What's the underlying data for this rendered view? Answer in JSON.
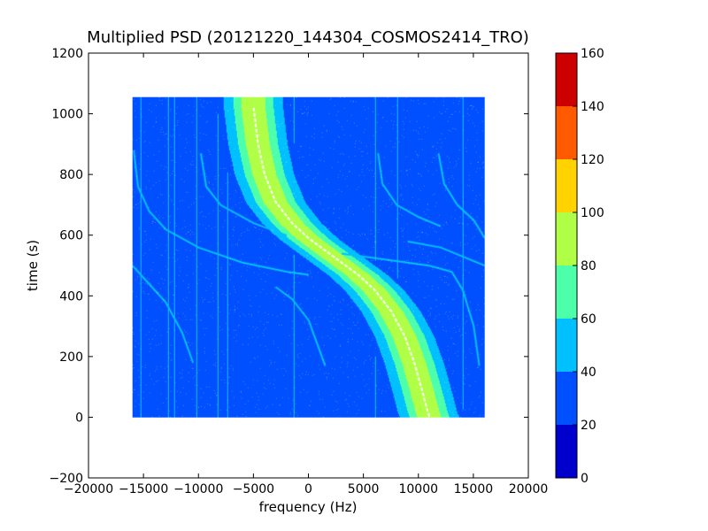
{
  "chart_data": {
    "type": "heatmap",
    "title": "Multiplied PSD (20121220_144304_COSMOS2414_TRO)",
    "xlabel": "frequency (Hz)",
    "ylabel": "time (s)",
    "xlim": [
      -20000,
      20000
    ],
    "ylim": [
      -200,
      1200
    ],
    "x_ticks": [
      -20000,
      -15000,
      -10000,
      -5000,
      0,
      5000,
      10000,
      15000,
      20000
    ],
    "y_ticks": [
      -200,
      0,
      200,
      400,
      600,
      800,
      1000,
      1200
    ],
    "x_tick_labels": [
      "−20000",
      "−15000",
      "−10000",
      "−5000",
      "0",
      "5000",
      "10000",
      "15000",
      "20000"
    ],
    "y_tick_labels": [
      "−200",
      "0",
      "200",
      "400",
      "600",
      "800",
      "1000",
      "1200"
    ],
    "data_extent": {
      "x": [
        -16000,
        16000
      ],
      "y": [
        0,
        1055
      ]
    },
    "background_value": 25,
    "grid": false,
    "colormap": "jet",
    "colorbar": {
      "range": [
        0,
        160
      ],
      "ticks": [
        0,
        20,
        40,
        60,
        80,
        100,
        120,
        140,
        160
      ],
      "tick_labels": [
        "0",
        "20",
        "40",
        "60",
        "80",
        "100",
        "120",
        "140",
        "160"
      ],
      "bins": [
        {
          "from": 0,
          "to": 20,
          "color": "#0000cd"
        },
        {
          "from": 20,
          "to": 40,
          "color": "#0050ff"
        },
        {
          "from": 40,
          "to": 60,
          "color": "#00c0ff"
        },
        {
          "from": 60,
          "to": 80,
          "color": "#4dffaa"
        },
        {
          "from": 80,
          "to": 100,
          "color": "#b0ff46"
        },
        {
          "from": 100,
          "to": 120,
          "color": "#ffd200"
        },
        {
          "from": 120,
          "to": 140,
          "color": "#ff5a00"
        },
        {
          "from": 140,
          "to": 160,
          "color": "#cd0000"
        }
      ]
    },
    "doppler_curve": {
      "description": "time vs frequency of the main Doppler trace",
      "points": [
        [
          -5000,
          1020
        ],
        [
          -4600,
          900
        ],
        [
          -4000,
          800
        ],
        [
          -3000,
          710
        ],
        [
          -1500,
          640
        ],
        [
          0,
          590
        ],
        [
          1500,
          550
        ],
        [
          3000,
          510
        ],
        [
          4500,
          470
        ],
        [
          6000,
          420
        ],
        [
          7500,
          350
        ],
        [
          8700,
          270
        ],
        [
          9600,
          180
        ],
        [
          10300,
          90
        ],
        [
          10800,
          20
        ],
        [
          11000,
          0
        ]
      ],
      "core_value": 90,
      "band_levels": [
        {
          "half_width_hz": 3300,
          "value": 30
        },
        {
          "half_width_hz": 2700,
          "value": 50
        },
        {
          "half_width_hz": 1800,
          "value": 70
        },
        {
          "half_width_hz": 1100,
          "value": 90
        }
      ]
    },
    "secondary_traces": {
      "value": 50,
      "curves": [
        {
          "points": [
            [
              -15900,
              880
            ],
            [
              -15500,
              760
            ],
            [
              -14500,
              680
            ],
            [
              -13000,
              620
            ],
            [
              -10000,
              560
            ],
            [
              -6000,
              510
            ],
            [
              -2000,
              480
            ],
            [
              0,
              470
            ]
          ]
        },
        {
          "points": [
            [
              -16000,
              500
            ],
            [
              -14500,
              440
            ],
            [
              -13000,
              380
            ],
            [
              -11500,
              280
            ],
            [
              -10500,
              180
            ]
          ]
        },
        {
          "points": [
            [
              -9800,
              870
            ],
            [
              -9300,
              760
            ],
            [
              -8000,
              700
            ],
            [
              -5000,
              640
            ],
            [
              -2000,
              600
            ]
          ]
        },
        {
          "points": [
            [
              -3000,
              430
            ],
            [
              -1500,
              390
            ],
            [
              0,
              320
            ],
            [
              800,
              240
            ],
            [
              1500,
              170
            ]
          ]
        },
        {
          "points": [
            [
              6300,
              870
            ],
            [
              6700,
              770
            ],
            [
              8000,
              700
            ],
            [
              10000,
              660
            ],
            [
              12000,
              630
            ]
          ]
        },
        {
          "points": [
            [
              11800,
              870
            ],
            [
              12300,
              770
            ],
            [
              13500,
              700
            ],
            [
              15000,
              650
            ],
            [
              16000,
              590
            ]
          ]
        },
        {
          "points": [
            [
              3000,
              540
            ],
            [
              7000,
              520
            ],
            [
              11000,
              500
            ],
            [
              13000,
              480
            ],
            [
              14000,
              420
            ],
            [
              15000,
              300
            ],
            [
              15500,
              170
            ]
          ]
        },
        {
          "points": [
            [
              9000,
              580
            ],
            [
              12000,
              560
            ],
            [
              14000,
              530
            ],
            [
              16000,
              500
            ]
          ]
        }
      ]
    },
    "vertical_lines": {
      "value": 40,
      "x": [
        -15300,
        -12800,
        -12200,
        -10200,
        -8300,
        -7400,
        -1400,
        6000,
        8000,
        14000
      ]
    }
  }
}
